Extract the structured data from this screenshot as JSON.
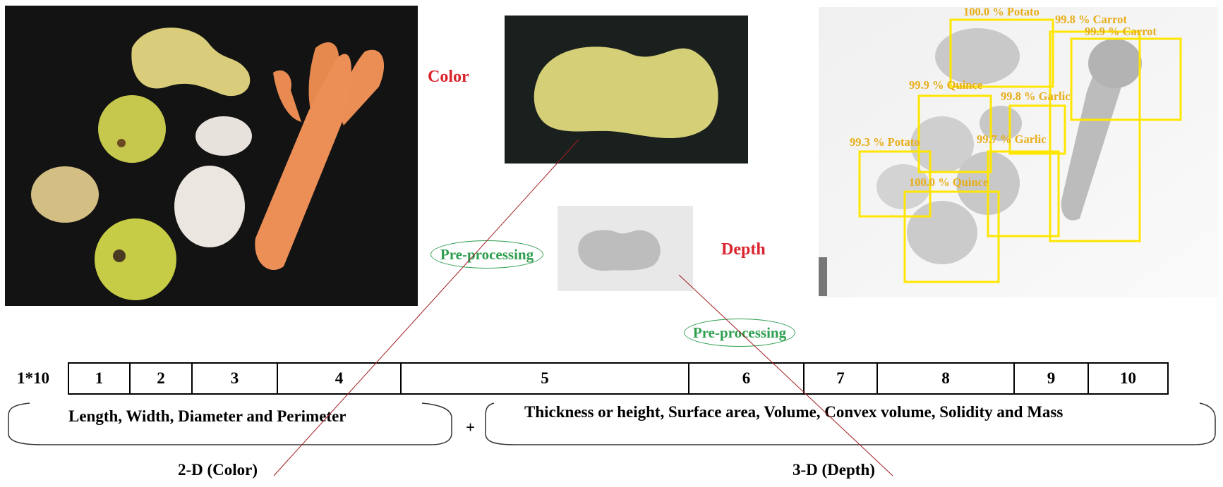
{
  "labels": {
    "color": "Color",
    "depth": "Depth",
    "preprocessing_1": "Pre-processing",
    "preprocessing_2": "Pre-processing"
  },
  "detections": [
    {
      "text": "100.0 % Potato"
    },
    {
      "text": "99.8 % Carrot"
    },
    {
      "text": "99.9 % Carrot"
    },
    {
      "text": "99.9 % Quince"
    },
    {
      "text": "99.8 % Garlic"
    },
    {
      "text": "99.3 % Potato"
    },
    {
      "text": "99.7 % Garlic"
    },
    {
      "text": "100.0 % Quince"
    }
  ],
  "feature_vector": {
    "label": "1*10",
    "cells": [
      "1",
      "2",
      "3",
      "4",
      "5",
      "6",
      "7",
      "8",
      "9",
      "10"
    ]
  },
  "groups": {
    "left_features": "Length, Width, Diameter and Perimeter",
    "plus": "+",
    "right_features": "Thickness or height, Surface area, Volume, Convex volume, Solidity and Mass",
    "left_title": "2-D (Color)",
    "right_title": "3-D (Depth)"
  },
  "colors": {
    "label_red": "#d9232d",
    "preprocess_green": "#2e9e4f",
    "detection_box": "#ffe600",
    "detection_text": "#e8ad1a",
    "connector": "#a01c22"
  }
}
